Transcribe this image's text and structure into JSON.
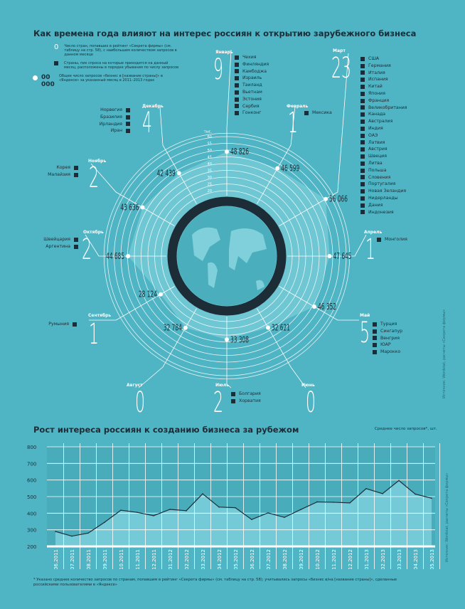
{
  "colors": {
    "background": "#4fb4c3",
    "dark": "#1d2d38",
    "radar_fill": "#74cad6",
    "line_area": "#74cad6",
    "white": "#ffffff"
  },
  "radar": {
    "title": "Как времена года влияют на интерес россиян к открытию зарубежного бизнеса",
    "scale_unit": "тыс.",
    "scale_ticks": [
      20,
      25,
      30,
      35,
      40,
      45,
      50,
      55,
      60
    ],
    "legend": [
      {
        "symbol": "0",
        "text": "Число стран, попавших в рейтинг «Секрета фирмы» (см. таблицу на стр. 58), с наибольшим количеством запросов в данном месяце"
      },
      {
        "symbol": "square",
        "text": "Страны, пик спроса на которые приходится на данный месяц, расположены в порядке убывания по числу запросов"
      },
      {
        "symbol": "00 000",
        "text": "Общее число запросов «бизнес в [название страны]» в «Яндексе» за указанный месяц в 2011–2013 годах"
      }
    ],
    "months": [
      {
        "name": "Январь",
        "count": "9",
        "value": 48826,
        "value_label": "48 826",
        "countries": [
          "Чехия",
          "Финляндия",
          "Камбоджа",
          "Израиль",
          "Таиланд",
          "Вьетнам",
          "Эстония",
          "Сербия",
          "Гонконг"
        ]
      },
      {
        "name": "Февраль",
        "count": "1",
        "value": 46599,
        "value_label": "46 599",
        "countries": [
          "Мексика"
        ]
      },
      {
        "name": "Март",
        "count": "23",
        "value": 56066,
        "value_label": "56 066",
        "countries": [
          "США",
          "Германия",
          "Италия",
          "Испания",
          "Китай",
          "Япония",
          "Франция",
          "Великобритания",
          "Канада",
          "Австралия",
          "Индия",
          "ОАЭ",
          "Латвия",
          "Австрия",
          "Швеция",
          "Литва",
          "Польша",
          "Словения",
          "Португалия",
          "Новая Зеландия",
          "Нидерланды",
          "Дания",
          "Индонезия"
        ]
      },
      {
        "name": "Апрель",
        "count": "1",
        "value": 47645,
        "value_label": "47 645",
        "countries": [
          "Монголия"
        ]
      },
      {
        "name": "Май",
        "count": "5",
        "value": 46352,
        "value_label": "46 352",
        "countries": [
          "Турция",
          "Сингапур",
          "Венгрия",
          "ЮАР",
          "Марокко"
        ]
      },
      {
        "name": "Июнь",
        "count": "0",
        "value": 32621,
        "value_label": "32 621",
        "countries": []
      },
      {
        "name": "Июль",
        "count": "2",
        "value": 33308,
        "value_label": "33 308",
        "countries": [
          "Болгария",
          "Хорватия"
        ]
      },
      {
        "name": "Август",
        "count": "0",
        "value": 32784,
        "value_label": "32 784",
        "countries": []
      },
      {
        "name": "Сентябрь",
        "count": "1",
        "value": 28124,
        "value_label": "28 124",
        "countries": [
          "Румыния"
        ]
      },
      {
        "name": "Октябрь",
        "count": "2",
        "value": 44685,
        "value_label": "44 685",
        "countries": [
          "Швейцария",
          "Аргентина"
        ]
      },
      {
        "name": "Ноябрь",
        "count": "2",
        "value": 43636,
        "value_label": "43 636",
        "countries": [
          "Корея",
          "Малайзия"
        ]
      },
      {
        "name": "Декабрь",
        "count": "4",
        "value": 42439,
        "value_label": "42 439",
        "countries": [
          "Норвегия",
          "Бразилия",
          "Ирландия",
          "Иран"
        ]
      }
    ]
  },
  "source_note": "Источник: Wordstat, расчеты «Секрета фирмы»",
  "chart_data": [
    {
      "type": "radar",
      "title": "Как времена года влияют на интерес россиян к открытию зарубежного бизнеса",
      "categories": [
        "Январь",
        "Февраль",
        "Март",
        "Апрель",
        "Май",
        "Июнь",
        "Июль",
        "Август",
        "Сентябрь",
        "Октябрь",
        "Ноябрь",
        "Декабрь"
      ],
      "values": [
        48826,
        46599,
        56066,
        47645,
        46352,
        32621,
        33308,
        32784,
        28124,
        44685,
        43636,
        42439
      ],
      "unit": "тыс.",
      "rlim": [
        20,
        60
      ]
    },
    {
      "type": "area",
      "title": "Рост интереса россиян к созданию бизнеса за рубежом",
      "ylabel": "Среднее число запросов*, шт.",
      "ylim": [
        200,
        800
      ],
      "yticks": [
        200,
        300,
        400,
        500,
        600,
        700,
        800
      ],
      "grid": true,
      "categories": [
        "06.2011",
        "07.2011",
        "08.2011",
        "09.2011",
        "10.2011",
        "11.2011",
        "12.2011",
        "01.2012",
        "02.2012",
        "03.2012",
        "04.2012",
        "05.2012",
        "06.2012",
        "07.2012",
        "08.2012",
        "09.2012",
        "10.2012",
        "11.2012",
        "12.2012",
        "01.2013",
        "02.2013",
        "03.2013",
        "04.2013",
        "05.2013"
      ],
      "values": [
        290,
        262,
        280,
        345,
        418,
        405,
        385,
        423,
        415,
        517,
        437,
        433,
        362,
        402,
        375,
        422,
        468,
        466,
        462,
        548,
        518,
        597,
        515,
        490
      ]
    }
  ],
  "footnote": "* Указано среднее количество запросов по странам, попавшим в рейтинг «Секрета фирмы» (см. таблицу на стр. 58); учитывались запросы «бизнес в/на [название страны]», сделанные российскими пользователями в «Яндексе»"
}
